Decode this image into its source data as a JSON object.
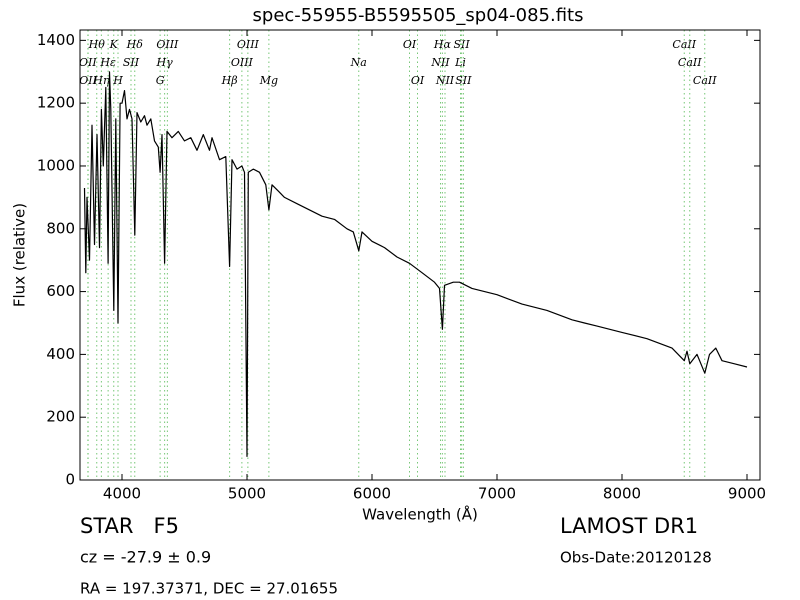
{
  "chart_data": {
    "type": "line",
    "title": "spec-55955-B5595505_sp04-085.fits",
    "x_label": "Wavelength (Å)",
    "y_label": "Flux (relative)",
    "xlim": [
      3664,
      9104
    ],
    "ylim": [
      0,
      1433
    ],
    "xticks": [
      4000,
      5000,
      6000,
      7000,
      8000,
      9000
    ],
    "yticks": [
      0,
      200,
      400,
      600,
      800,
      1000,
      1200,
      1400
    ],
    "grid": false,
    "x": [
      3700,
      3710,
      3720,
      3740,
      3760,
      3780,
      3800,
      3820,
      3835,
      3850,
      3870,
      3889,
      3900,
      3910,
      3934,
      3950,
      3968,
      3985,
      4000,
      4020,
      4040,
      4060,
      4080,
      4102,
      4120,
      4150,
      4180,
      4200,
      4230,
      4260,
      4290,
      4305,
      4320,
      4341,
      4360,
      4400,
      4450,
      4500,
      4550,
      4600,
      4650,
      4700,
      4720,
      4780,
      4830,
      4861,
      4880,
      4920,
      4959,
      4980,
      5000,
      5010,
      5050,
      5100,
      5150,
      5175,
      5200,
      5250,
      5300,
      5400,
      5500,
      5600,
      5700,
      5800,
      5850,
      5894,
      5920,
      6000,
      6100,
      6200,
      6300,
      6400,
      6500,
      6540,
      6563,
      6580,
      6650,
      6700,
      6800,
      6900,
      7000,
      7200,
      7400,
      7600,
      7700,
      7800,
      8000,
      8200,
      8400,
      8498,
      8520,
      8542,
      8600,
      8662,
      8700,
      8750,
      8800,
      8900,
      9000
    ],
    "series": [
      {
        "color": "#000000",
        "values": [
          930,
          660,
          900,
          700,
          1130,
          750,
          1100,
          740,
          1180,
          1000,
          1250,
          690,
          1300,
          1180,
          540,
          1150,
          500,
          1200,
          1200,
          1240,
          1150,
          1180,
          1150,
          780,
          1170,
          1140,
          1160,
          1130,
          1150,
          1080,
          1060,
          980,
          1100,
          690,
          1110,
          1090,
          1110,
          1080,
          1090,
          1050,
          1100,
          1050,
          1090,
          1020,
          1030,
          680,
          1020,
          990,
          1000,
          980,
          75,
          980,
          990,
          980,
          940,
          860,
          940,
          920,
          900,
          880,
          860,
          840,
          830,
          800,
          790,
          730,
          790,
          760,
          740,
          710,
          690,
          660,
          630,
          610,
          480,
          620,
          630,
          630,
          610,
          600,
          590,
          560,
          540,
          510,
          500,
          490,
          470,
          450,
          420,
          380,
          410,
          370,
          400,
          340,
          400,
          420,
          380,
          370,
          360
        ]
      }
    ],
    "line_color": "#77c777",
    "lines": [
      {
        "label": "OII",
        "x": 3727
      },
      {
        "label": "OII",
        "x": 3729
      },
      {
        "label": "Hθ",
        "x": 3798
      },
      {
        "label": "Hη",
        "x": 3835
      },
      {
        "label": "Hε",
        "x": 3889
      },
      {
        "label": "K",
        "x": 3934
      },
      {
        "label": "H",
        "x": 3968
      },
      {
        "label": "SII",
        "x": 4072
      },
      {
        "label": "Hδ",
        "x": 4102
      },
      {
        "label": "G",
        "x": 4305
      },
      {
        "label": "Hγ",
        "x": 4341
      },
      {
        "label": "OIII",
        "x": 4363
      },
      {
        "label": "Hβ",
        "x": 4861
      },
      {
        "label": "OIII",
        "x": 4959
      },
      {
        "label": "OIII",
        "x": 5007
      },
      {
        "label": "Mg",
        "x": 5175
      },
      {
        "label": "Na",
        "x": 5894
      },
      {
        "label": "OI",
        "x": 6300
      },
      {
        "label": "OI",
        "x": 6364
      },
      {
        "label": "NII",
        "x": 6548
      },
      {
        "label": "Hα",
        "x": 6563
      },
      {
        "label": "NII",
        "x": 6584
      },
      {
        "label": "Li",
        "x": 6708
      },
      {
        "label": "SII",
        "x": 6717
      },
      {
        "label": "SII",
        "x": 6731
      },
      {
        "label": "CaII",
        "x": 8498
      },
      {
        "label": "CaII",
        "x": 8542
      },
      {
        "label": "CaII",
        "x": 8662
      }
    ],
    "object": "STAR   F5",
    "redshift": "cz = -27.9 ± 0.9",
    "coordinates": "RA = 197.37371, DEC = 27.01655",
    "release": "LAMOST DR1",
    "obs_date": "Obs-Date:20120128"
  }
}
